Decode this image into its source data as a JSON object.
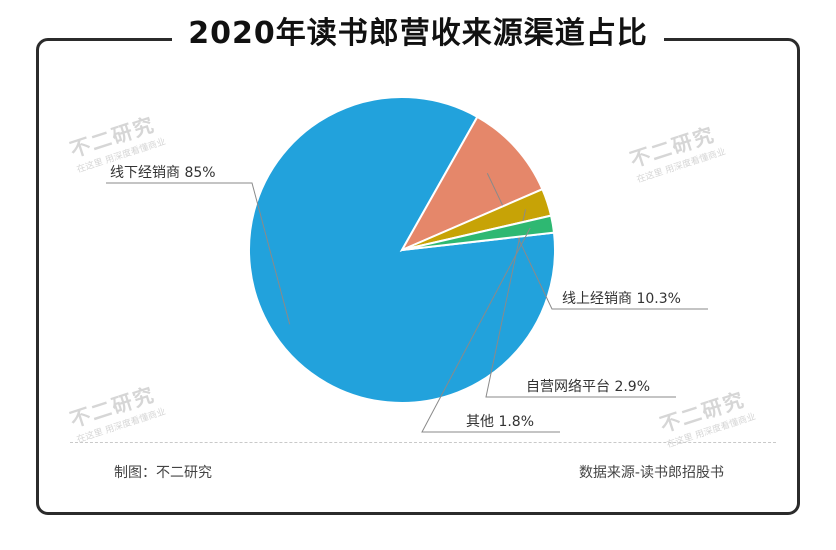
{
  "title": "2020年读书郎营收来源渠道占比",
  "footer": {
    "made_by": "制图：不二研究",
    "source": "数据来源-读书郎招股书"
  },
  "watermark": {
    "main": "不二研究",
    "sub": "在这里 用深度看懂商业"
  },
  "colors": {
    "offline": "#22a2dc",
    "online": "#e5876a",
    "self_platform": "#c7a306",
    "other": "#2eb872"
  },
  "chart_data": {
    "type": "pie",
    "title": "2020年读书郎营收来源渠道占比",
    "slices": [
      {
        "label": "线下经销商",
        "value": 85,
        "display": "85%",
        "color": "#22a2dc"
      },
      {
        "label": "线上经销商",
        "value": 10.3,
        "display": "10.3%",
        "color": "#e5876a"
      },
      {
        "label": "自营网络平台",
        "value": 2.9,
        "display": "2.9%",
        "color": "#c7a306"
      },
      {
        "label": "其他",
        "value": 1.8,
        "display": "1.8%",
        "color": "#2eb872"
      }
    ]
  }
}
